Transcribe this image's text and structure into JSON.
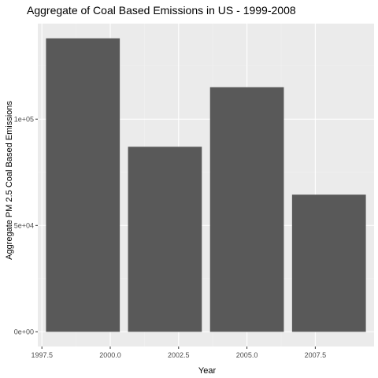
{
  "chart_data": {
    "type": "bar",
    "title": "Aggregate of Coal Based Emissions in US - 1999-2008",
    "xlabel": "Year",
    "ylabel": "Aggregate PM 2.5 Coal Based Emissions",
    "categories": [
      1999,
      2002,
      2005,
      2008
    ],
    "values": [
      138000,
      87000,
      115000,
      64500
    ],
    "bar_width_years": 2.7,
    "xlim": [
      1997.35,
      2009.65
    ],
    "ylim": [
      -6900,
      144900
    ],
    "x_ticks": [
      1997.5,
      2000.0,
      2002.5,
      2005.0,
      2007.5
    ],
    "x_tick_labels": [
      "1997.5",
      "2000.0",
      "2002.5",
      "2005.0",
      "2007.5"
    ],
    "y_ticks": [
      0,
      50000,
      100000
    ],
    "y_tick_labels": [
      "0e+00",
      "5e+04",
      "1e+05"
    ],
    "colors": {
      "bar": "#595959",
      "panel": "#ebebeb",
      "grid_major": "#ffffff",
      "grid_minor": "#f2f2f2",
      "tick": "#333333"
    }
  }
}
